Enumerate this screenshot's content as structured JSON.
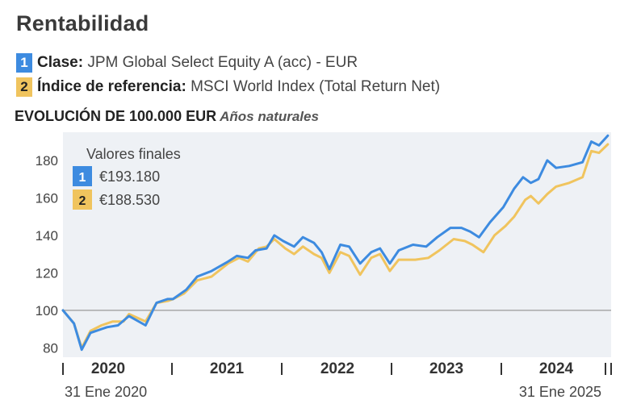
{
  "header": {
    "title": "Rentabilidad",
    "fund_label": "Clase:",
    "fund_value": "JPM Global Select Equity A (acc) - EUR",
    "index_label": "Índice de referencia:",
    "index_value": "MSCI World Index (Total Return Net)",
    "subtitle_main": "EVOLUCIÓN DE 100.000 EUR",
    "subtitle_sub": "Años naturales"
  },
  "colors": {
    "fund": "#3d8be0",
    "index": "#f0c45e",
    "plot_bg": "#eef1f5",
    "baseline": "#999999"
  },
  "chart_data": {
    "type": "line",
    "ylim": [
      75,
      195
    ],
    "yticks": [
      80,
      100,
      120,
      140,
      160,
      180
    ],
    "baseline": 100,
    "x_range": [
      "31 Ene 2020",
      "31 Ene 2025"
    ],
    "year_labels": [
      "2020",
      "2021",
      "2022",
      "2023",
      "2024"
    ],
    "final_values_title": "Valores finales",
    "series": [
      {
        "badge": "1",
        "final_label": "€193.180",
        "values": [
          [
            0.0,
            100
          ],
          [
            0.1,
            93
          ],
          [
            0.17,
            79
          ],
          [
            0.25,
            88
          ],
          [
            0.4,
            91
          ],
          [
            0.5,
            92
          ],
          [
            0.6,
            97
          ],
          [
            0.75,
            92
          ],
          [
            0.85,
            104
          ],
          [
            0.95,
            106
          ],
          [
            1.0,
            106
          ],
          [
            1.12,
            111
          ],
          [
            1.22,
            118
          ],
          [
            1.35,
            121
          ],
          [
            1.5,
            126
          ],
          [
            1.58,
            129
          ],
          [
            1.68,
            128
          ],
          [
            1.75,
            132
          ],
          [
            1.85,
            133
          ],
          [
            1.92,
            140
          ],
          [
            2.0,
            137
          ],
          [
            2.1,
            134
          ],
          [
            2.18,
            139
          ],
          [
            2.28,
            136
          ],
          [
            2.35,
            131
          ],
          [
            2.42,
            122
          ],
          [
            2.52,
            135
          ],
          [
            2.6,
            134
          ],
          [
            2.7,
            125
          ],
          [
            2.8,
            131
          ],
          [
            2.88,
            133
          ],
          [
            2.97,
            125
          ],
          [
            3.05,
            132
          ],
          [
            3.18,
            135
          ],
          [
            3.3,
            134
          ],
          [
            3.4,
            139
          ],
          [
            3.52,
            144
          ],
          [
            3.62,
            144
          ],
          [
            3.7,
            142
          ],
          [
            3.78,
            139
          ],
          [
            3.88,
            147
          ],
          [
            4.0,
            155
          ],
          [
            4.1,
            165
          ],
          [
            4.18,
            171
          ],
          [
            4.25,
            168
          ],
          [
            4.32,
            170
          ],
          [
            4.4,
            180
          ],
          [
            4.48,
            176
          ],
          [
            4.6,
            177
          ],
          [
            4.72,
            179
          ],
          [
            4.8,
            190
          ],
          [
            4.87,
            188
          ],
          [
            4.95,
            193.18
          ]
        ]
      },
      {
        "badge": "2",
        "final_label": "€188.530",
        "values": [
          [
            0.0,
            100
          ],
          [
            0.1,
            93
          ],
          [
            0.17,
            80
          ],
          [
            0.25,
            89
          ],
          [
            0.35,
            92
          ],
          [
            0.45,
            94
          ],
          [
            0.55,
            94
          ],
          [
            0.6,
            98
          ],
          [
            0.75,
            94
          ],
          [
            0.85,
            104
          ],
          [
            0.95,
            105
          ],
          [
            1.0,
            106
          ],
          [
            1.1,
            109
          ],
          [
            1.22,
            116
          ],
          [
            1.35,
            118
          ],
          [
            1.5,
            125
          ],
          [
            1.6,
            128
          ],
          [
            1.68,
            126
          ],
          [
            1.78,
            133
          ],
          [
            1.85,
            134
          ],
          [
            1.92,
            138
          ],
          [
            2.02,
            133
          ],
          [
            2.1,
            130
          ],
          [
            2.18,
            134
          ],
          [
            2.28,
            130
          ],
          [
            2.35,
            128
          ],
          [
            2.42,
            120
          ],
          [
            2.52,
            131
          ],
          [
            2.6,
            129
          ],
          [
            2.7,
            119
          ],
          [
            2.8,
            128
          ],
          [
            2.88,
            130
          ],
          [
            2.97,
            121
          ],
          [
            3.05,
            127
          ],
          [
            3.2,
            127
          ],
          [
            3.32,
            128
          ],
          [
            3.42,
            132
          ],
          [
            3.55,
            138
          ],
          [
            3.65,
            137
          ],
          [
            3.72,
            135
          ],
          [
            3.82,
            131
          ],
          [
            3.92,
            140
          ],
          [
            4.02,
            145
          ],
          [
            4.1,
            150
          ],
          [
            4.2,
            159
          ],
          [
            4.25,
            161
          ],
          [
            4.32,
            157
          ],
          [
            4.4,
            162
          ],
          [
            4.48,
            166
          ],
          [
            4.6,
            168
          ],
          [
            4.72,
            171
          ],
          [
            4.8,
            185
          ],
          [
            4.87,
            184
          ],
          [
            4.95,
            188.53
          ]
        ]
      }
    ]
  }
}
